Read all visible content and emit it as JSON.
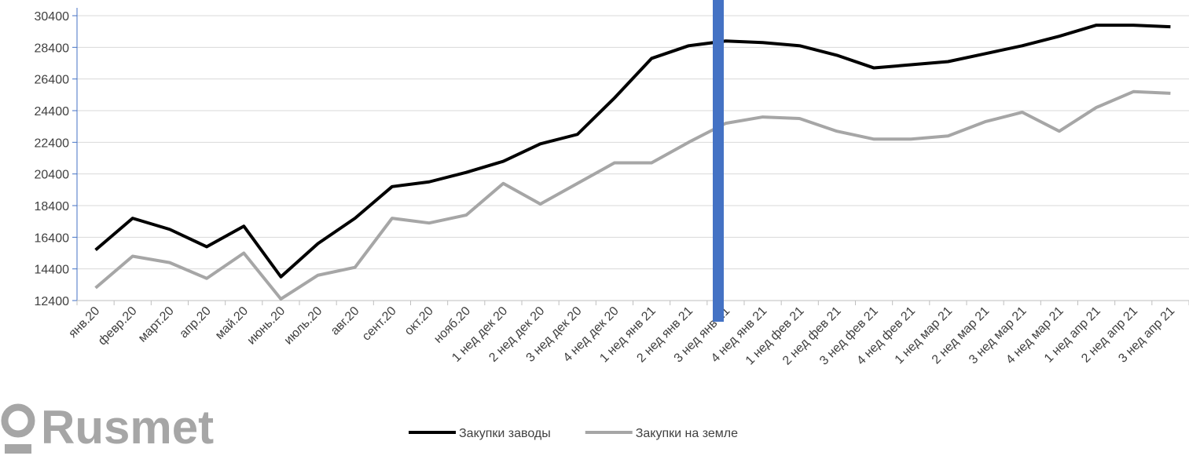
{
  "logo_text": "Rusmet",
  "chart_data": {
    "type": "line",
    "categories": [
      "янв.20",
      "февр.20",
      "март.20",
      "апр.20",
      "май.20",
      "июнь.20",
      "июль.20",
      "авг.20",
      "сент.20",
      "окт.20",
      "нояб.20",
      "1 нед дек 20",
      "2 нед дек 20",
      "3 нед дек 20",
      "4 нед дек 20",
      "1 нед янв 21",
      "2 нед янв 21",
      "3 нед янв 21",
      "4 нед янв 21",
      "1 нед фев 21",
      "2 нед фев 21",
      "3 нед фев 21",
      "4 нед фев 21",
      "1 нед мар 21",
      "2 нед мар 21",
      "3 нед мар 21",
      "4 нед мар 21",
      "1 нед апр 21",
      "2 нед апр 21",
      "3 нед апр 21"
    ],
    "series": [
      {
        "name": "Закупки заводы",
        "color": "#000000",
        "values": [
          15600,
          17600,
          16900,
          15800,
          17100,
          13900,
          16000,
          17600,
          19600,
          19900,
          20500,
          21200,
          22300,
          22900,
          25200,
          27700,
          28500,
          28800,
          28700,
          28500,
          27900,
          27100,
          27300,
          27500,
          28000,
          28500,
          29100,
          29800,
          29800,
          29700
        ]
      },
      {
        "name": "Закупки на земле",
        "color": "#a6a6a6",
        "values": [
          13200,
          15200,
          14800,
          13800,
          15400,
          12500,
          14000,
          14500,
          17600,
          17300,
          17800,
          19800,
          18500,
          19800,
          21100,
          21100,
          22400,
          23600,
          24000,
          23900,
          23100,
          22600,
          22600,
          22800,
          23700,
          24300,
          23100,
          24600,
          25600,
          25500
        ]
      }
    ],
    "ylim": [
      12400,
      30400
    ],
    "yticks": [
      12400,
      14400,
      16400,
      18400,
      20400,
      22400,
      24400,
      26400,
      28400,
      30400
    ],
    "grid": true,
    "legend": "bottom"
  }
}
